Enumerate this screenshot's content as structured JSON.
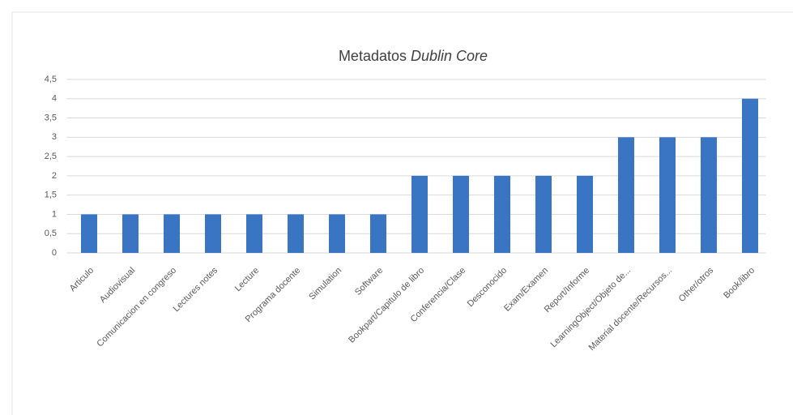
{
  "chart_data": {
    "type": "bar",
    "title": {
      "text": "Metadatos",
      "emphasis": "Dublin Core"
    },
    "categories": [
      "Articulo",
      "Audiovisual",
      "Comunicacion en congreso",
      "Lectures notes",
      "Lecture",
      "Programa docente",
      "Simulation",
      "Software",
      "Bookpart/Capitulo de libro",
      "Conferencia/Clase",
      "Desconocido",
      "Exam/Examen",
      "Report/Informe",
      "LearningObject/Objeto de...",
      "Material docente/Recursos...",
      "Other/otros",
      "Book/libro"
    ],
    "values": [
      1,
      1,
      1,
      1,
      1,
      1,
      1,
      1,
      2,
      2,
      2,
      2,
      2,
      3,
      3,
      3,
      4
    ],
    "color": "#3a75c4",
    "ylim": [
      0,
      4.5
    ],
    "yticks": [
      0,
      {
        "value": 0.5,
        "label": "0,5"
      },
      1,
      {
        "value": 1.5,
        "label": "1,5"
      },
      2,
      {
        "value": 2.5,
        "label": "2,5"
      },
      3,
      {
        "value": 3.5,
        "label": "3,5"
      },
      4,
      {
        "value": 4.5,
        "label": "4,5"
      }
    ],
    "grid": true
  }
}
